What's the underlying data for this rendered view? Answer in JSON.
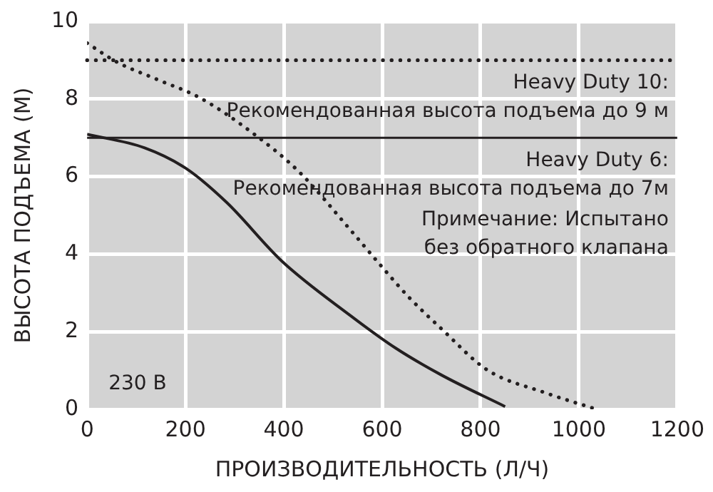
{
  "chart_data": {
    "type": "line",
    "xlabel": "ПРОИЗВОДИТЕЛЬНОСТЬ (Л/Ч)",
    "ylabel": "ВЫСОТА ПОДЪЕМА (М)",
    "xlim": [
      0,
      1200
    ],
    "xticks": [
      0,
      200,
      400,
      600,
      800,
      1000,
      1200
    ],
    "ylim": [
      0,
      10
    ],
    "yticks": [
      0,
      2,
      4,
      6,
      8,
      10
    ],
    "grid": true,
    "legend": false,
    "marker": "none",
    "series": [
      {
        "color": "#231f20",
        "line_style": "solid",
        "x": [
          0,
          117,
          201,
          284,
          396,
          535,
          627,
          721,
          850
        ],
        "values": [
          7.09,
          6.74,
          6.21,
          5.33,
          3.82,
          2.42,
          1.58,
          0.88,
          0.07
        ]
      },
      {
        "color": "#231f20",
        "line_style": "dotted",
        "x": [
          0,
          61,
          145,
          228,
          340,
          432,
          535,
          599,
          655,
          721,
          813,
          933,
          1036
        ],
        "values": [
          9.44,
          8.95,
          8.49,
          8.04,
          7.09,
          6.11,
          4.63,
          3.68,
          2.88,
          2.07,
          1.02,
          0.42,
          0
        ]
      }
    ],
    "ref_lines": [
      {
        "axis": "y",
        "value": 9,
        "label": "Heavy Duty 10:\nРекомендованная высота подъема до 9 м",
        "line_style": "dotted",
        "color": "#231f20"
      },
      {
        "axis": "y",
        "value": 7,
        "label": "Heavy Duty 6:\nРекомендованная высота подъема до 7м",
        "line_style": "solid",
        "color": "#231f20"
      }
    ],
    "annotations": [
      "Примечание: Испытано\nбез обратного клапана",
      "230 В"
    ]
  }
}
